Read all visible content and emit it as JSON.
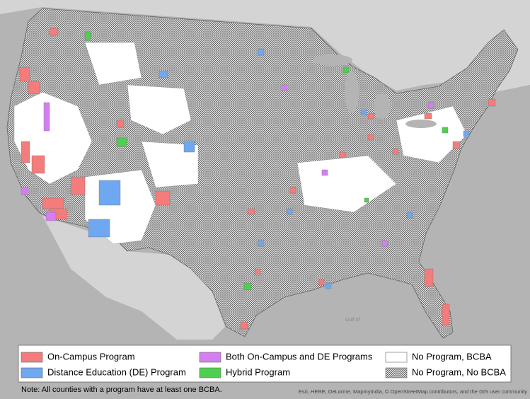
{
  "legend": {
    "items": [
      {
        "label": "On-Campus Program",
        "color": "#f47c7c"
      },
      {
        "label": "Distance Education (DE) Program",
        "color": "#6fa8f0"
      },
      {
        "label": "Both On-Campus and DE Programs",
        "color": "#d57ef2"
      },
      {
        "label": "Hybrid Program",
        "color": "#4fcf4f"
      },
      {
        "label": "No Program, BCBA",
        "color": "#ffffff"
      },
      {
        "label": "No Program, No BCBA",
        "color": "#ffffff",
        "pattern": "crosshatch"
      }
    ]
  },
  "map_label": "Gulf of",
  "note": "Note:  All counties with a program have at least one BCBA.",
  "attribution": "Esri, HERE, DeLorme, MapmyIndia, © OpenStreetMap contributors, and the GIS user community"
}
